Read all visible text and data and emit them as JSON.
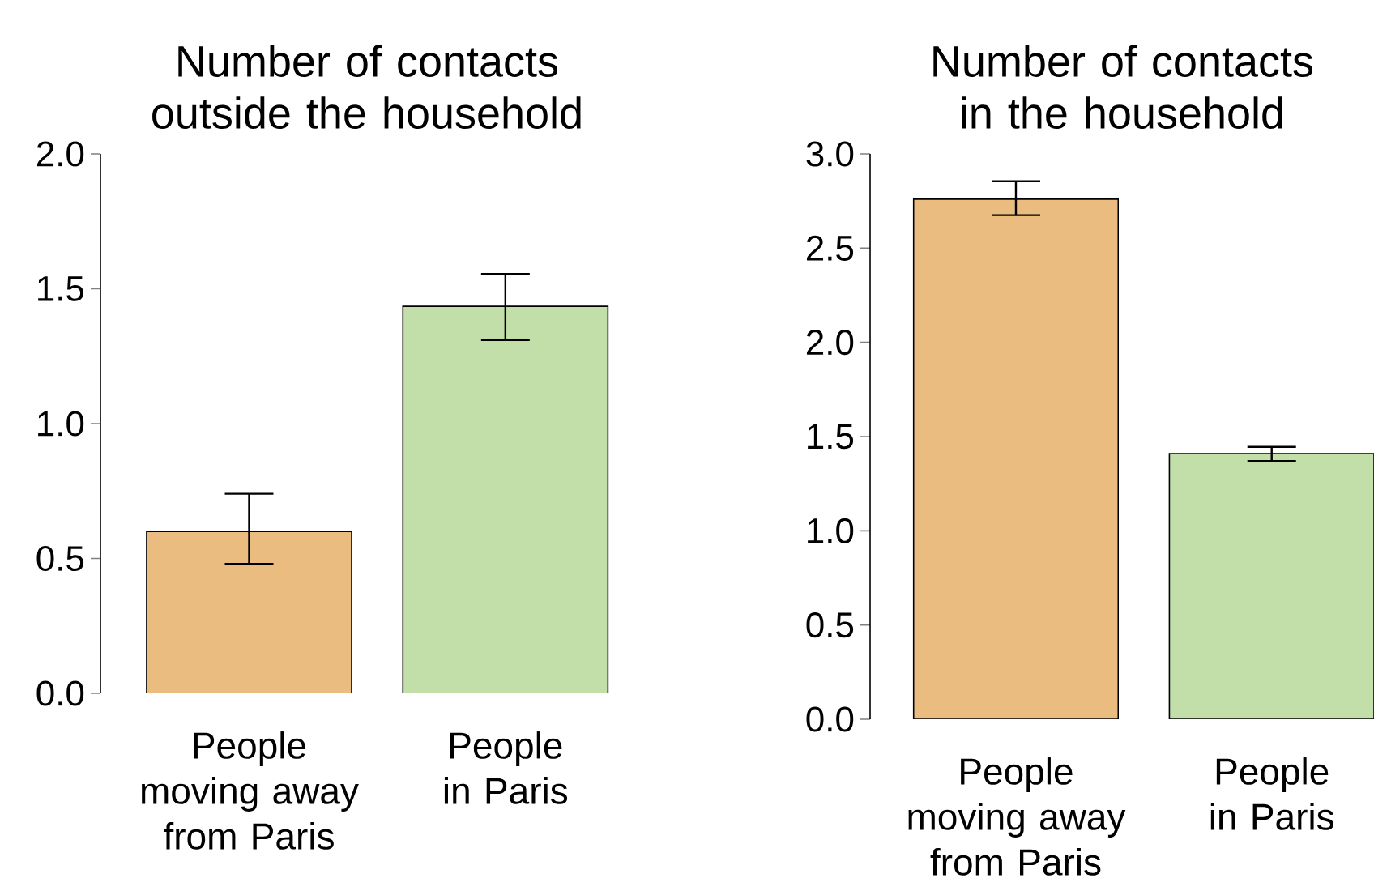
{
  "chart_data": [
    {
      "type": "bar",
      "title": "Number of contacts outside the household",
      "categories": [
        "People moving away from Paris",
        "People in Paris"
      ],
      "values": [
        0.6,
        1.435
      ],
      "colors": [
        "#ebbc80",
        "#c2dfa9"
      ],
      "errors": [
        [
          0.48,
          0.74
        ],
        [
          1.31,
          1.555
        ]
      ],
      "ylim": [
        0,
        2
      ],
      "yticks": [
        {
          "value": 0,
          "label": "0.0"
        },
        {
          "value": 0.5,
          "label": "0.5"
        },
        {
          "value": 1,
          "label": "1.0"
        },
        {
          "value": 1.5,
          "label": "1.5"
        },
        {
          "value": 2,
          "label": "2.0"
        }
      ]
    },
    {
      "type": "bar",
      "title": "Number of contacts in the household",
      "categories": [
        "People moving away from Paris",
        "People in Paris"
      ],
      "values": [
        2.76,
        1.41
      ],
      "colors": [
        "#ebbc80",
        "#c2dfa9"
      ],
      "errors": [
        [
          2.675,
          2.855
        ],
        [
          1.37,
          1.445
        ]
      ],
      "ylim": [
        0,
        3
      ],
      "yticks": [
        {
          "value": 0,
          "label": "0.0"
        },
        {
          "value": 0.5,
          "label": "0.5"
        },
        {
          "value": 1,
          "label": "1.0"
        },
        {
          "value": 1.5,
          "label": "1.5"
        },
        {
          "value": 2,
          "label": "2.0"
        },
        {
          "value": 2.5,
          "label": "2.5"
        },
        {
          "value": 3,
          "label": "3.0"
        }
      ]
    }
  ]
}
